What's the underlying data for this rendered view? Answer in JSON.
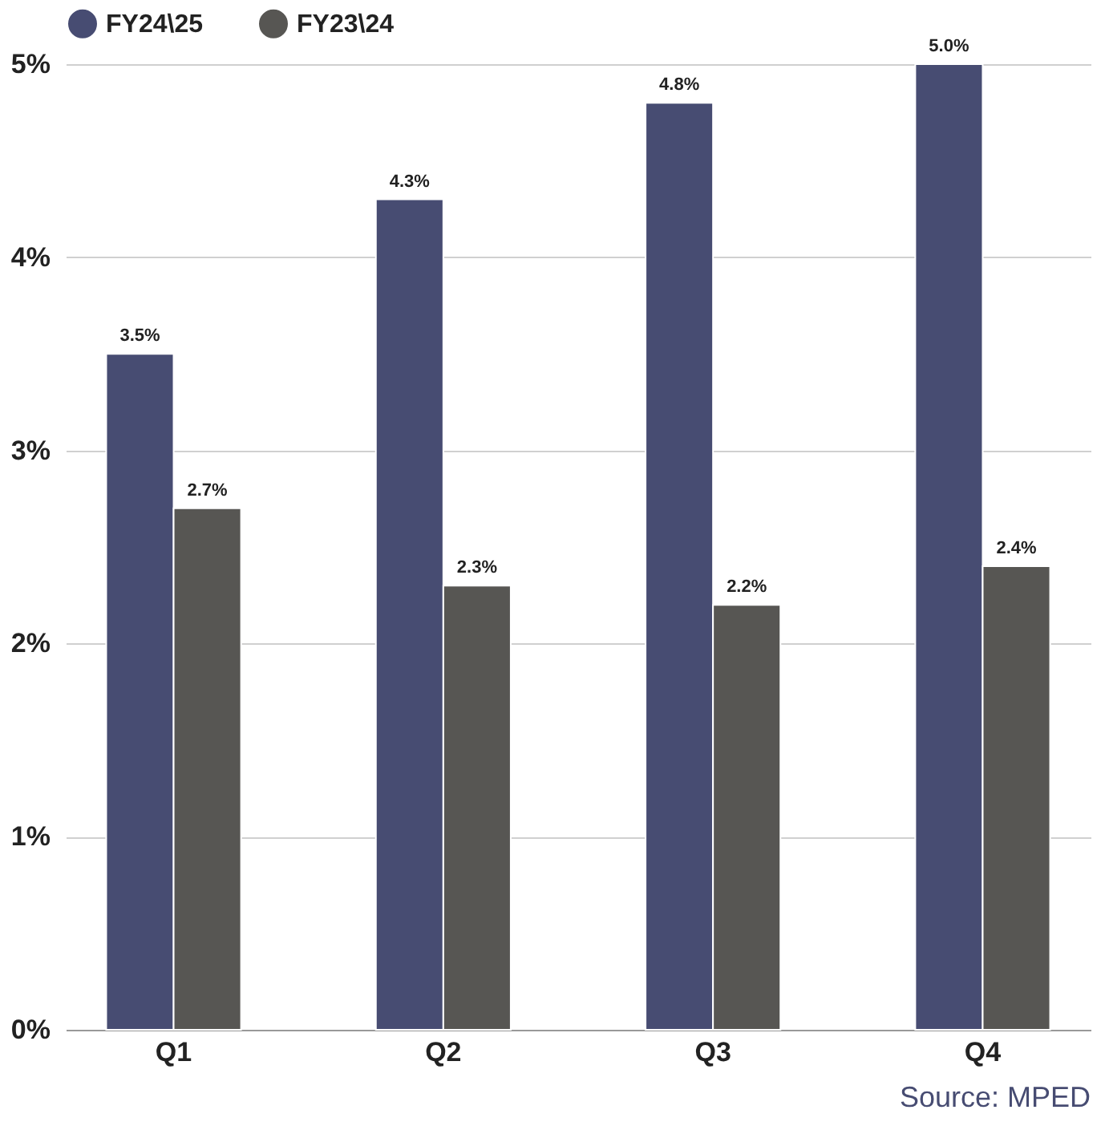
{
  "chart_data": {
    "type": "bar",
    "categories": [
      "Q1",
      "Q2",
      "Q3",
      "Q4"
    ],
    "series": [
      {
        "name": "FY24\\25",
        "color": "#474c72",
        "values": [
          3.5,
          4.3,
          4.8,
          5.0
        ],
        "value_labels": [
          "3.5%",
          "4.3%",
          "4.8%",
          "5.0%"
        ]
      },
      {
        "name": "FY23\\24",
        "color": "#575653",
        "values": [
          2.7,
          2.3,
          2.2,
          2.4
        ],
        "value_labels": [
          "2.7%",
          "2.3%",
          "2.2%",
          "2.4%"
        ]
      }
    ],
    "ylim": [
      0,
      5
    ],
    "yticks": [
      {
        "value": 0,
        "label": "0%"
      },
      {
        "value": 1,
        "label": "1%"
      },
      {
        "value": 2,
        "label": "2%"
      },
      {
        "value": 3,
        "label": "3%"
      },
      {
        "value": 4,
        "label": "4%"
      },
      {
        "value": 5,
        "label": "5%"
      }
    ],
    "grid": "y",
    "legend": "top",
    "annotations": [
      "Source: MPED"
    ]
  }
}
